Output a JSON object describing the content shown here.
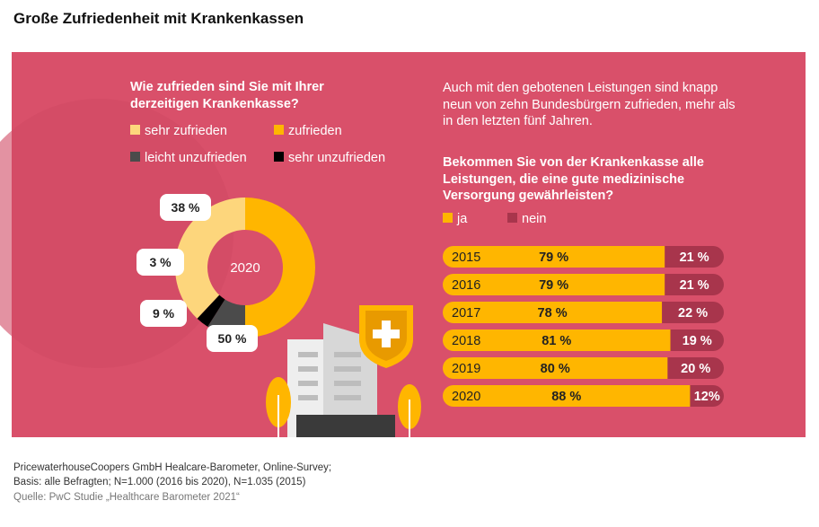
{
  "title": "Große Zufriedenheit mit Krankenkassen",
  "intro": "Auch mit den gebotenen Leistungen sind knapp neun von zehn Bundesbürgern zufrieden, mehr als in den letzten fünf Jahren.",
  "footnotes": [
    "PricewaterhouseCoopers GmbH Healcare-Barometer, Online-Survey;",
    "Basis: alle Befragten; N=1.000 (2016 bis 2020), N=1.035 (2015)",
    "Quelle: PwC Studie „Healthcare Barometer 2021“"
  ],
  "chart_data": [
    {
      "type": "pie",
      "donut": true,
      "title": "Wie zufrieden sind Sie mit Ihrer derzeitigen Krankenkasse?",
      "center_label": "2020",
      "categories": [
        "sehr zufrieden",
        "zufrieden",
        "leicht unzufrieden",
        "sehr unzufrieden"
      ],
      "values": [
        38,
        50,
        9,
        3
      ],
      "value_labels": [
        "38 %",
        "50 %",
        "9 %",
        "3 %"
      ],
      "colors": [
        "#fdd67c",
        "#ffb600",
        "#4b4b4b",
        "#000000"
      ]
    },
    {
      "type": "bar",
      "orientation": "horizontal",
      "stacked": true,
      "title": "Bekommen Sie von der Krankenkasse alle Leistungen, die eine gute medizinische Versorgung gewährleisten?",
      "categories": [
        "2015",
        "2016",
        "2017",
        "2018",
        "2019",
        "2020"
      ],
      "series": [
        {
          "name": "ja",
          "color": "#ffb600",
          "values": [
            79,
            79,
            78,
            81,
            80,
            88
          ],
          "value_labels": [
            "79 %",
            "79 %",
            "78 %",
            "81 %",
            "80 %",
            "88 %"
          ]
        },
        {
          "name": "nein",
          "color": "#a8354c",
          "values": [
            21,
            21,
            22,
            19,
            20,
            12
          ],
          "value_labels": [
            "21 %",
            "21 %",
            "22 %",
            "19 %",
            "20 %",
            "12%"
          ]
        }
      ],
      "xlim": [
        0,
        100
      ],
      "legend": "top-left"
    }
  ]
}
